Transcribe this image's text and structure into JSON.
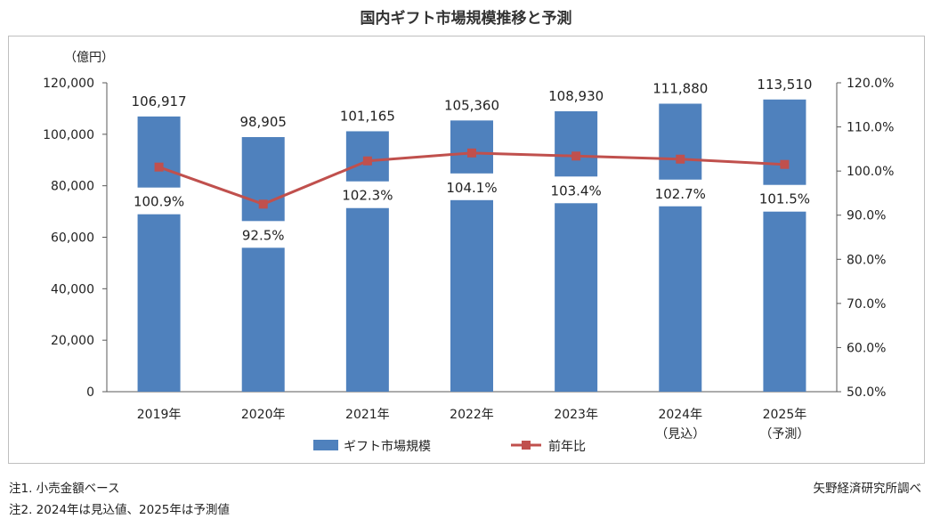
{
  "title": "国内ギフト市場規模推移と予測",
  "chart_data": {
    "type": "bar+line",
    "title": "国内ギフト市場規模推移と予測",
    "categories": [
      "2019年",
      "2020年",
      "2021年",
      "2022年",
      "2023年",
      "2024年",
      "2025年"
    ],
    "category_sublabels": [
      "",
      "",
      "",
      "",
      "",
      "（見込）",
      "（予測）"
    ],
    "left_axis": {
      "unit_label": "（億円）",
      "ylim": [
        0,
        120000
      ],
      "ticks": [
        0,
        20000,
        40000,
        60000,
        80000,
        100000,
        120000
      ],
      "tick_labels": [
        "0",
        "20,000",
        "40,000",
        "60,000",
        "80,000",
        "100,000",
        "120,000"
      ]
    },
    "right_axis": {
      "ylim": [
        50,
        120
      ],
      "ticks": [
        50,
        60,
        70,
        80,
        90,
        100,
        110,
        120
      ],
      "tick_labels": [
        "50.0%",
        "60.0%",
        "70.0%",
        "80.0%",
        "90.0%",
        "100.0%",
        "110.0%",
        "120.0%"
      ]
    },
    "series": [
      {
        "name": "ギフト市場規模",
        "type": "bar",
        "axis": "left",
        "color": "#4f81bd",
        "values": [
          106917,
          98905,
          101165,
          105360,
          108930,
          111880,
          113510
        ],
        "labels": [
          "106,917",
          "98,905",
          "101,165",
          "105,360",
          "108,930",
          "111,880",
          "113,510"
        ]
      },
      {
        "name": "前年比",
        "type": "line",
        "axis": "right",
        "color": "#c0504d",
        "values": [
          100.9,
          92.5,
          102.3,
          104.1,
          103.4,
          102.7,
          101.5
        ],
        "labels": [
          "100.9%",
          "92.5%",
          "102.3%",
          "104.1%",
          "103.4%",
          "102.7%",
          "101.5%"
        ]
      }
    ],
    "legend_position": "bottom",
    "grid": false
  },
  "notes": [
    "注1.  小売金額ベース",
    "注2.  2024年は見込値、2025年は予測値"
  ],
  "source": "矢野経済研究所調べ"
}
